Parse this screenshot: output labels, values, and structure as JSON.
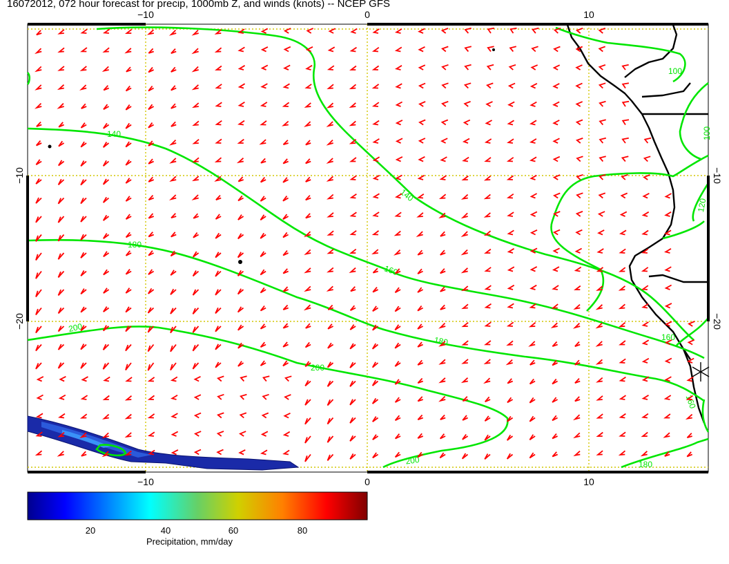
{
  "title": "16072012, 072 hour forecast for precip, 1000mb Z, and winds (knots) -- NCEP GFS",
  "map": {
    "lon_ticks": [
      "−10",
      "0",
      "10"
    ],
    "lat_ticks": [
      "−10",
      "−20"
    ],
    "contour_labels": [
      "100",
      "100",
      "120",
      "140",
      "160",
      "160",
      "180",
      "180",
      "180",
      "200",
      "200",
      "200",
      "140",
      "160"
    ],
    "colors": {
      "wind_barbs": "#ff0000",
      "height_contours": "#00e600",
      "coastline": "#000000",
      "gridlines": "#d2c600",
      "precip_fill": "#1a2aa8"
    }
  },
  "colorbar": {
    "label": "Precipitation, mm/day",
    "ticks": [
      "20",
      "40",
      "60",
      "80"
    ],
    "range": [
      5,
      95
    ],
    "colormap": "jet"
  }
}
